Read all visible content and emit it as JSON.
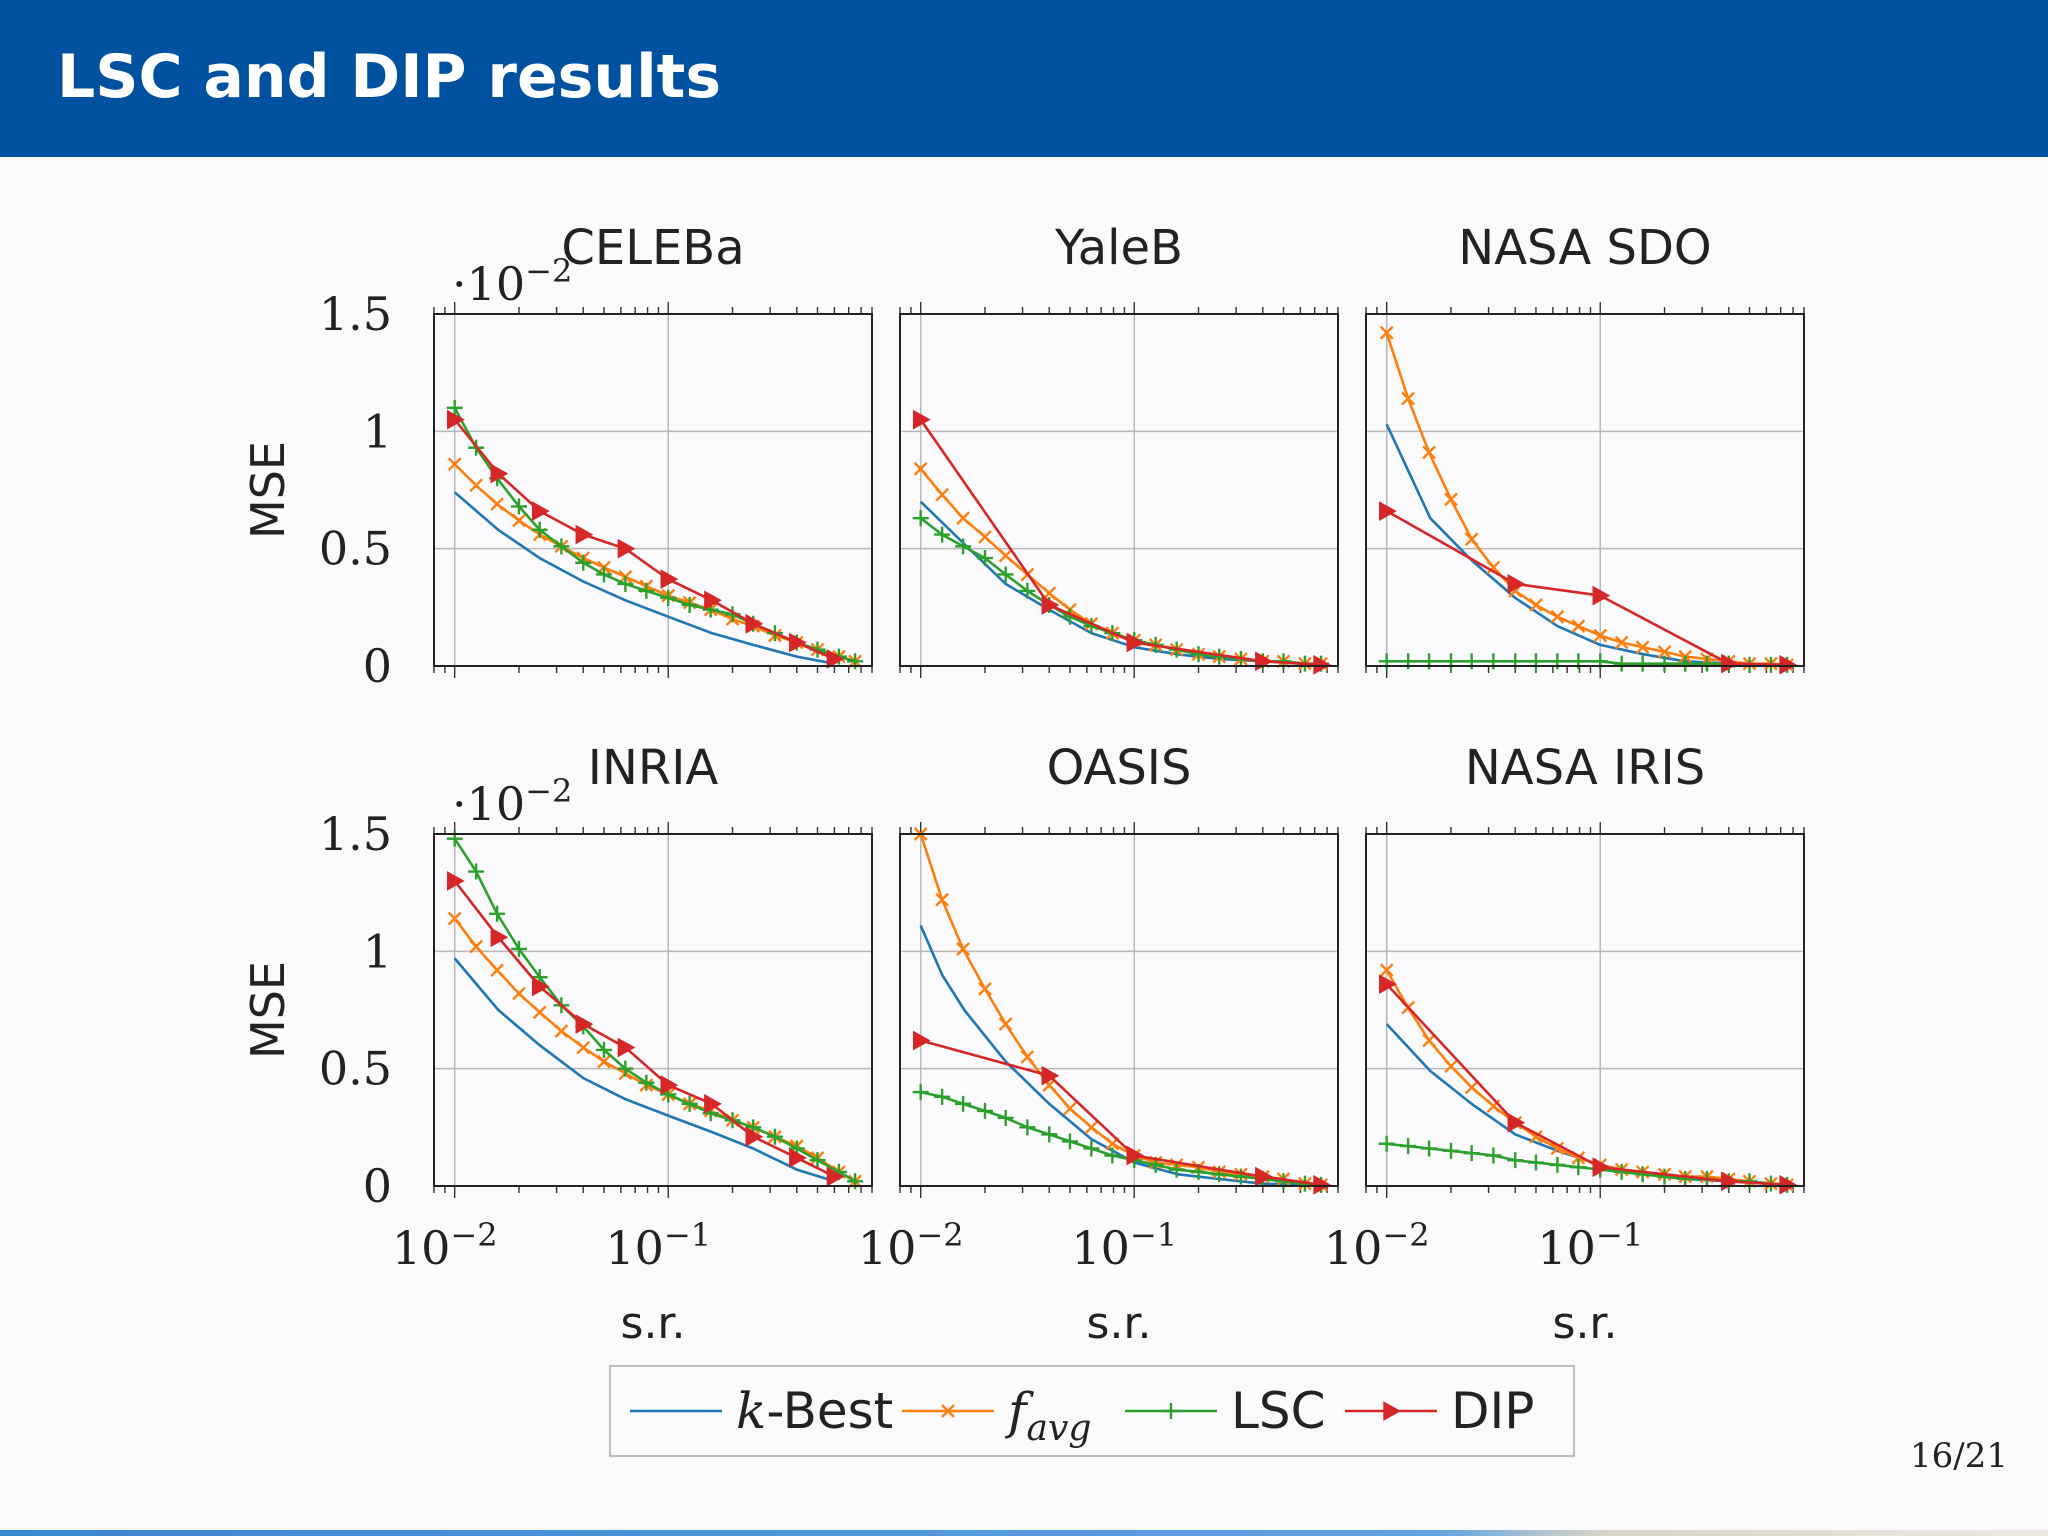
{
  "slide": {
    "title": "LSC and DIP results",
    "page_number": "16/21"
  },
  "colors": {
    "header": "#0051a0",
    "k-Best": "#1f77b4",
    "f_avg": "#ff7f0e",
    "LSC": "#2ca02c",
    "DIP": "#d62728"
  },
  "legend": {
    "placement": "bottom-center",
    "entries": [
      {
        "series": "k-Best",
        "label": "-Best",
        "math_prefix": "k",
        "marker": "none"
      },
      {
        "series": "f_avg",
        "label": "f",
        "subscript": "avg",
        "marker": "x"
      },
      {
        "series": "LSC",
        "label": "LSC",
        "marker": "+"
      },
      {
        "series": "DIP",
        "label": "DIP",
        "marker": "triangle"
      }
    ]
  },
  "shared_axes": {
    "xscale": "log",
    "xlim": [
      0.008,
      0.9
    ],
    "ylim": [
      0,
      0.015
    ],
    "y_ticks": [
      0,
      0.005,
      0.01,
      0.015
    ],
    "y_tick_labels": [
      "0",
      "0.5",
      "1",
      "1.5"
    ],
    "y_multiplier": "·10",
    "y_multiplier_exp": "−2",
    "x_ticks": [
      0.01,
      0.1
    ],
    "x_tick_base": "10",
    "x_tick_exps": [
      "−2",
      "−1"
    ],
    "xlabel": "s.r.",
    "ylabel": "MSE",
    "grid": true
  },
  "chart_data": [
    {
      "type": "line",
      "title": "CELEBa",
      "xscale": "log",
      "ylim": [
        0,
        0.015
      ],
      "series": [
        {
          "name": "k-Best",
          "x": [
            0.01,
            0.016,
            0.025,
            0.04,
            0.063,
            0.1,
            0.16,
            0.25,
            0.4,
            0.6
          ],
          "y": [
            0.0074,
            0.0058,
            0.0046,
            0.0036,
            0.0028,
            0.0021,
            0.0014,
            0.0009,
            0.0004,
            0.0001
          ]
        },
        {
          "name": "f_avg",
          "x": [
            0.01,
            0.0126,
            0.0158,
            0.02,
            0.025,
            0.0316,
            0.04,
            0.05,
            0.063,
            0.079,
            0.1,
            0.126,
            0.158,
            0.2,
            0.25,
            0.316,
            0.4,
            0.5,
            0.63,
            0.75
          ],
          "y": [
            0.0086,
            0.0077,
            0.0069,
            0.0062,
            0.0056,
            0.0051,
            0.0046,
            0.0042,
            0.0038,
            0.0034,
            0.003,
            0.0027,
            0.0024,
            0.002,
            0.0017,
            0.0013,
            0.001,
            0.0007,
            0.0004,
            0.0002
          ]
        },
        {
          "name": "LSC",
          "x": [
            0.01,
            0.0126,
            0.0158,
            0.02,
            0.025,
            0.0316,
            0.04,
            0.05,
            0.063,
            0.079,
            0.1,
            0.126,
            0.158,
            0.2,
            0.25,
            0.316,
            0.4,
            0.5,
            0.63,
            0.75
          ],
          "y": [
            0.011,
            0.0093,
            0.008,
            0.0068,
            0.0058,
            0.0051,
            0.0044,
            0.0039,
            0.0035,
            0.0032,
            0.0029,
            0.0026,
            0.0024,
            0.0022,
            0.0018,
            0.0014,
            0.001,
            0.0007,
            0.0004,
            0.0002
          ]
        },
        {
          "name": "DIP",
          "x": [
            0.01,
            0.016,
            0.025,
            0.04,
            0.063,
            0.1,
            0.16,
            0.25,
            0.4,
            0.6
          ],
          "y": [
            0.0105,
            0.0082,
            0.0066,
            0.0056,
            0.005,
            0.0037,
            0.0028,
            0.0018,
            0.001,
            0.0003
          ]
        }
      ]
    },
    {
      "type": "line",
      "title": "YaleB",
      "xscale": "log",
      "ylim": [
        0,
        0.015
      ],
      "series": [
        {
          "name": "k-Best",
          "x": [
            0.01,
            0.016,
            0.025,
            0.04,
            0.063,
            0.1,
            0.16,
            0.25,
            0.4,
            0.6
          ],
          "y": [
            0.007,
            0.0052,
            0.0035,
            0.0024,
            0.0014,
            0.0008,
            0.0005,
            0.0003,
            0.0002,
            0.0001
          ]
        },
        {
          "name": "f_avg",
          "x": [
            0.01,
            0.0126,
            0.0158,
            0.02,
            0.025,
            0.0316,
            0.04,
            0.05,
            0.063,
            0.079,
            0.1,
            0.126,
            0.158,
            0.2,
            0.25,
            0.316,
            0.4,
            0.5,
            0.63,
            0.75
          ],
          "y": [
            0.0084,
            0.0073,
            0.0063,
            0.0055,
            0.0047,
            0.0039,
            0.0031,
            0.0024,
            0.0018,
            0.0014,
            0.0011,
            0.0009,
            0.0007,
            0.0005,
            0.0004,
            0.0003,
            0.0002,
            0.0002,
            0.0001,
            0.0001
          ]
        },
        {
          "name": "LSC",
          "x": [
            0.01,
            0.0126,
            0.0158,
            0.02,
            0.025,
            0.0316,
            0.04,
            0.05,
            0.063,
            0.079,
            0.1,
            0.126,
            0.158,
            0.2,
            0.25,
            0.316,
            0.4,
            0.5,
            0.63,
            0.75
          ],
          "y": [
            0.0063,
            0.0056,
            0.0051,
            0.0046,
            0.0039,
            0.0032,
            0.0026,
            0.0021,
            0.0017,
            0.0014,
            0.0011,
            0.0009,
            0.0007,
            0.0005,
            0.0004,
            0.0003,
            0.0002,
            0.0002,
            0.0001,
            0.0001
          ]
        },
        {
          "name": "DIP",
          "x": [
            0.01,
            0.04,
            0.1,
            0.4,
            0.75
          ],
          "y": [
            0.0105,
            0.0026,
            0.001,
            0.0002,
            5e-05
          ]
        }
      ]
    },
    {
      "type": "line",
      "title": "NASA SDO",
      "xscale": "log",
      "ylim": [
        0,
        0.015
      ],
      "series": [
        {
          "name": "k-Best",
          "x": [
            0.01,
            0.016,
            0.025,
            0.04,
            0.063,
            0.1,
            0.16,
            0.25,
            0.4,
            0.6
          ],
          "y": [
            0.0103,
            0.0063,
            0.0045,
            0.0029,
            0.0017,
            0.0009,
            0.0005,
            0.0002,
            0.0001,
            5e-05
          ]
        },
        {
          "name": "f_avg",
          "x": [
            0.01,
            0.0126,
            0.0158,
            0.02,
            0.025,
            0.0316,
            0.04,
            0.05,
            0.063,
            0.079,
            0.1,
            0.126,
            0.158,
            0.2,
            0.25,
            0.316,
            0.4,
            0.5,
            0.63,
            0.75
          ],
          "y": [
            0.0142,
            0.0114,
            0.0091,
            0.0071,
            0.0054,
            0.0042,
            0.0032,
            0.0026,
            0.0021,
            0.0017,
            0.0013,
            0.001,
            0.0008,
            0.0006,
            0.0004,
            0.0003,
            0.0002,
            0.0001,
            0.0001,
            5e-05
          ]
        },
        {
          "name": "LSC",
          "x": [
            0.01,
            0.0126,
            0.0158,
            0.02,
            0.025,
            0.0316,
            0.04,
            0.05,
            0.063,
            0.079,
            0.1,
            0.126,
            0.158,
            0.2,
            0.25,
            0.316,
            0.4,
            0.5,
            0.63,
            0.75
          ],
          "y": [
            0.0002,
            0.0002,
            0.0002,
            0.0002,
            0.0002,
            0.0002,
            0.0002,
            0.0002,
            0.0002,
            0.0002,
            0.0002,
            0.0001,
            0.0001,
            0.0001,
            0.0001,
            0.0001,
            0.0001,
            5e-05,
            5e-05,
            5e-05
          ]
        },
        {
          "name": "DIP",
          "x": [
            0.01,
            0.04,
            0.1,
            0.4,
            0.75
          ],
          "y": [
            0.0066,
            0.0035,
            0.003,
            0.0001,
            5e-05
          ]
        }
      ]
    },
    {
      "type": "line",
      "title": "INRIA",
      "xscale": "log",
      "ylim": [
        0,
        0.015
      ],
      "series": [
        {
          "name": "k-Best",
          "x": [
            0.01,
            0.016,
            0.025,
            0.04,
            0.063,
            0.1,
            0.16,
            0.25,
            0.4,
            0.6
          ],
          "y": [
            0.0097,
            0.0075,
            0.006,
            0.0046,
            0.0037,
            0.003,
            0.0023,
            0.0016,
            0.0007,
            0.0002
          ]
        },
        {
          "name": "f_avg",
          "x": [
            0.01,
            0.0126,
            0.0158,
            0.02,
            0.025,
            0.0316,
            0.04,
            0.05,
            0.063,
            0.079,
            0.1,
            0.126,
            0.158,
            0.2,
            0.25,
            0.316,
            0.4,
            0.5,
            0.63,
            0.75
          ],
          "y": [
            0.0114,
            0.0102,
            0.0092,
            0.0082,
            0.0074,
            0.0066,
            0.0059,
            0.0053,
            0.0048,
            0.0043,
            0.0039,
            0.0035,
            0.0032,
            0.0028,
            0.0025,
            0.0021,
            0.0017,
            0.0012,
            0.0006,
            0.0002
          ]
        },
        {
          "name": "LSC",
          "x": [
            0.01,
            0.0126,
            0.0158,
            0.02,
            0.025,
            0.0316,
            0.04,
            0.05,
            0.063,
            0.079,
            0.1,
            0.126,
            0.158,
            0.2,
            0.25,
            0.316,
            0.4,
            0.5,
            0.63,
            0.75
          ],
          "y": [
            0.0148,
            0.0134,
            0.0116,
            0.0101,
            0.0089,
            0.0077,
            0.0068,
            0.0058,
            0.005,
            0.0044,
            0.0039,
            0.0035,
            0.0031,
            0.0028,
            0.0025,
            0.0021,
            0.0016,
            0.0011,
            0.0006,
            0.0002
          ]
        },
        {
          "name": "DIP",
          "x": [
            0.01,
            0.016,
            0.025,
            0.04,
            0.063,
            0.1,
            0.16,
            0.25,
            0.4,
            0.6
          ],
          "y": [
            0.013,
            0.0106,
            0.0085,
            0.0069,
            0.0059,
            0.0043,
            0.0035,
            0.0021,
            0.0012,
            0.0004
          ]
        }
      ]
    },
    {
      "type": "line",
      "title": "OASIS",
      "xscale": "log",
      "ylim": [
        0,
        0.015
      ],
      "series": [
        {
          "name": "k-Best",
          "x": [
            0.01,
            0.0126,
            0.016,
            0.025,
            0.04,
            0.063,
            0.1,
            0.16,
            0.25,
            0.4,
            0.6
          ],
          "y": [
            0.0111,
            0.009,
            0.0075,
            0.0053,
            0.0035,
            0.002,
            0.001,
            0.0005,
            0.0003,
            0.0001,
            5e-05
          ]
        },
        {
          "name": "f_avg",
          "x": [
            0.01,
            0.0126,
            0.0158,
            0.02,
            0.025,
            0.0316,
            0.04,
            0.05,
            0.063,
            0.079,
            0.1,
            0.126,
            0.158,
            0.2,
            0.25,
            0.316,
            0.4,
            0.5,
            0.63,
            0.75
          ],
          "y": [
            0.015,
            0.0122,
            0.0101,
            0.0084,
            0.0069,
            0.0055,
            0.0043,
            0.0033,
            0.0025,
            0.0018,
            0.0013,
            0.001,
            0.0009,
            0.0008,
            0.0006,
            0.0005,
            0.0004,
            0.0003,
            0.0001,
            5e-05
          ]
        },
        {
          "name": "LSC",
          "x": [
            0.01,
            0.0126,
            0.0158,
            0.02,
            0.025,
            0.0316,
            0.04,
            0.05,
            0.063,
            0.079,
            0.1,
            0.126,
            0.158,
            0.2,
            0.25,
            0.316,
            0.4,
            0.5,
            0.63,
            0.75
          ],
          "y": [
            0.004,
            0.0038,
            0.0035,
            0.0032,
            0.0029,
            0.0025,
            0.0022,
            0.0019,
            0.0016,
            0.0013,
            0.0011,
            0.0009,
            0.0007,
            0.0006,
            0.0005,
            0.0004,
            0.0003,
            0.0002,
            0.0001,
            5e-05
          ]
        },
        {
          "name": "DIP",
          "x": [
            0.01,
            0.04,
            0.1,
            0.4,
            0.75
          ],
          "y": [
            0.0062,
            0.0047,
            0.0013,
            0.0004,
            5e-05
          ]
        }
      ]
    },
    {
      "type": "line",
      "title": "NASA IRIS",
      "xscale": "log",
      "ylim": [
        0,
        0.015
      ],
      "series": [
        {
          "name": "k-Best",
          "x": [
            0.01,
            0.016,
            0.025,
            0.04,
            0.063,
            0.1,
            0.16,
            0.25,
            0.4,
            0.6
          ],
          "y": [
            0.0069,
            0.0049,
            0.0035,
            0.0022,
            0.0015,
            0.0009,
            0.0005,
            0.0003,
            0.0002,
            0.0001
          ]
        },
        {
          "name": "f_avg",
          "x": [
            0.01,
            0.0126,
            0.0158,
            0.02,
            0.025,
            0.0316,
            0.04,
            0.05,
            0.063,
            0.079,
            0.1,
            0.126,
            0.158,
            0.2,
            0.25,
            0.316,
            0.4,
            0.5,
            0.63,
            0.75
          ],
          "y": [
            0.0092,
            0.0076,
            0.0062,
            0.0051,
            0.0042,
            0.0034,
            0.0027,
            0.0021,
            0.0016,
            0.0012,
            0.0009,
            0.0007,
            0.0006,
            0.0005,
            0.0004,
            0.0004,
            0.0003,
            0.0002,
            0.0001,
            5e-05
          ]
        },
        {
          "name": "LSC",
          "x": [
            0.01,
            0.0126,
            0.0158,
            0.02,
            0.025,
            0.0316,
            0.04,
            0.05,
            0.063,
            0.079,
            0.1,
            0.126,
            0.158,
            0.2,
            0.25,
            0.316,
            0.4,
            0.5,
            0.63,
            0.75
          ],
          "y": [
            0.0018,
            0.0017,
            0.0016,
            0.0015,
            0.0014,
            0.0013,
            0.0011,
            0.001,
            0.0009,
            0.0008,
            0.0007,
            0.0006,
            0.0005,
            0.0004,
            0.0003,
            0.0003,
            0.0002,
            0.0002,
            0.0001,
            5e-05
          ]
        },
        {
          "name": "DIP",
          "x": [
            0.01,
            0.04,
            0.1,
            0.4,
            0.75
          ],
          "y": [
            0.0086,
            0.0027,
            0.0008,
            0.0002,
            5e-05
          ]
        }
      ]
    }
  ]
}
